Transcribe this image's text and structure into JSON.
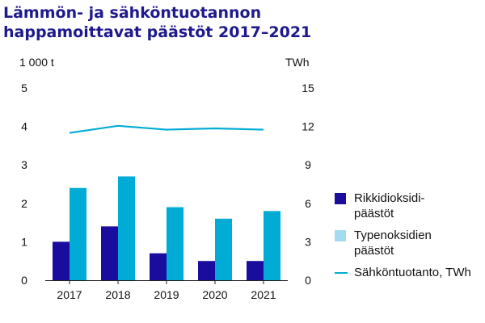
{
  "chart_data": {
    "type": "bar",
    "title": [
      "Lämmön- ja sähköntuotannon",
      "happamoittavat päästöt 2017–2021"
    ],
    "left_axis": {
      "unit": "1 000 t",
      "ylim": [
        0,
        5
      ],
      "ticks": [
        "0",
        "1",
        "2",
        "3",
        "4",
        "5"
      ]
    },
    "right_axis": {
      "unit": "TWh",
      "ylim": [
        0,
        15
      ],
      "ticks": [
        "0",
        "3",
        "6",
        "9",
        "12",
        "15"
      ]
    },
    "categories": [
      "2017",
      "2018",
      "2019",
      "2020",
      "2021"
    ],
    "series": [
      {
        "name": "Rikkidioksidi-päästöt",
        "type": "bar",
        "axis": "left",
        "color": "#1a0d9e",
        "values": [
          1.0,
          1.4,
          0.7,
          0.5,
          0.5
        ]
      },
      {
        "name": "Typenoksidien päästöt",
        "type": "bar",
        "axis": "left",
        "color": "#00acd6",
        "values": [
          2.4,
          2.7,
          1.9,
          1.6,
          1.8
        ]
      },
      {
        "name": "Sähköntuotanto, TWh",
        "type": "line",
        "axis": "right",
        "color": "#00acd6",
        "values": [
          11.5,
          12.05,
          11.75,
          11.85,
          11.75
        ]
      }
    ],
    "legend": {
      "placement": "right",
      "items": [
        {
          "label_lines": [
            "Rikkidioksidi-",
            "päästöt"
          ],
          "color": "#1a0d9e",
          "kind": "box"
        },
        {
          "label_lines": [
            "Typenoksidien",
            "päästöt"
          ],
          "color": "#a3dcee",
          "kind": "box"
        },
        {
          "label_lines": [
            "Sähköntuotanto, TWh"
          ],
          "color": "#00acd6",
          "kind": "line"
        }
      ]
    },
    "grid": false
  }
}
